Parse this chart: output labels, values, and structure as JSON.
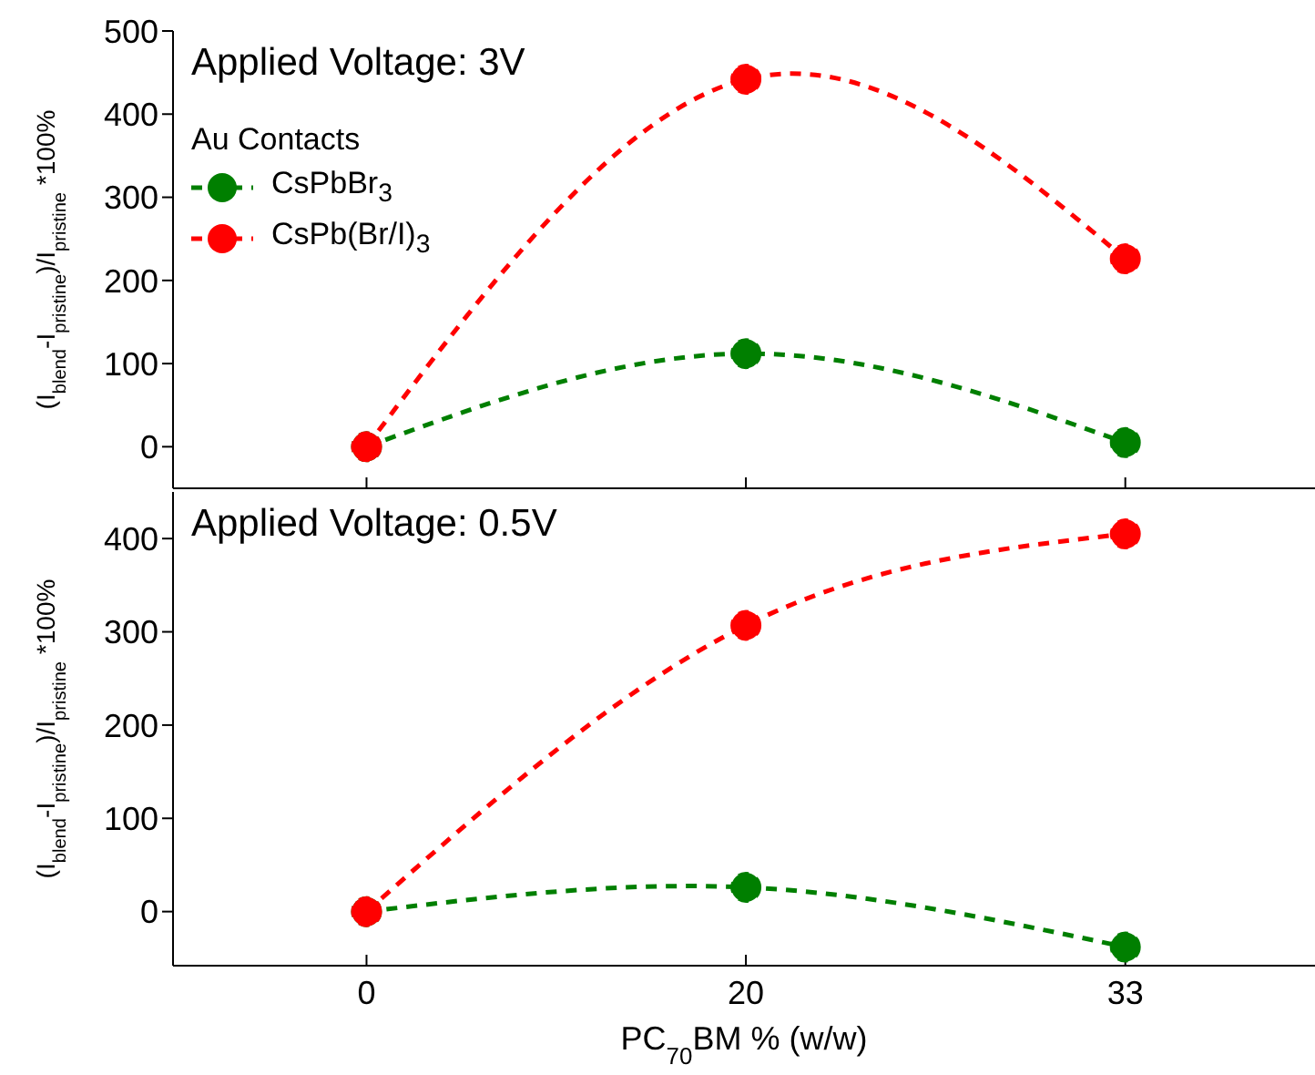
{
  "chart_data": [
    {
      "type": "line",
      "categories": [
        "0",
        "20",
        "33"
      ],
      "ylabel": "(I$_{blend}$-I$_{pristine}$)/I$_{pristine}$ *100%",
      "ylim": [
        -50,
        500
      ],
      "yticks": [
        0,
        100,
        200,
        300,
        400,
        500
      ],
      "legend_title": "Au Contacts",
      "legend": "top left",
      "marker": "circle",
      "line_style": "dashed",
      "tick_labels": "y",
      "annotations": [
        "Applied Voltage: 3V"
      ],
      "series": [
        {
          "name": "CsPbBr$_{3}$",
          "color": "#007f00",
          "values": [
            0,
            112,
            5
          ]
        },
        {
          "name": "CsPb(Br/I)$_{3}$",
          "color": "#ff0000",
          "values": [
            0,
            442,
            226
          ]
        }
      ]
    },
    {
      "type": "line",
      "categories": [
        "0",
        "20",
        "33"
      ],
      "xlabel": "PC$_{70}$BM % (w/w)",
      "ylabel": "(I$_{blend}$-I$_{pristine}$)/I$_{pristine}$ *100%",
      "ylim": [
        -58,
        450
      ],
      "yticks": [
        0,
        100,
        200,
        300,
        400
      ],
      "marker": "circle",
      "line_style": "dashed",
      "annotations": [
        "Applied Voltage: 0.5V"
      ],
      "series": [
        {
          "color": "#007f00",
          "values": [
            0,
            26,
            -38
          ]
        },
        {
          "color": "#ff0000",
          "values": [
            0,
            307,
            405
          ]
        }
      ]
    }
  ]
}
